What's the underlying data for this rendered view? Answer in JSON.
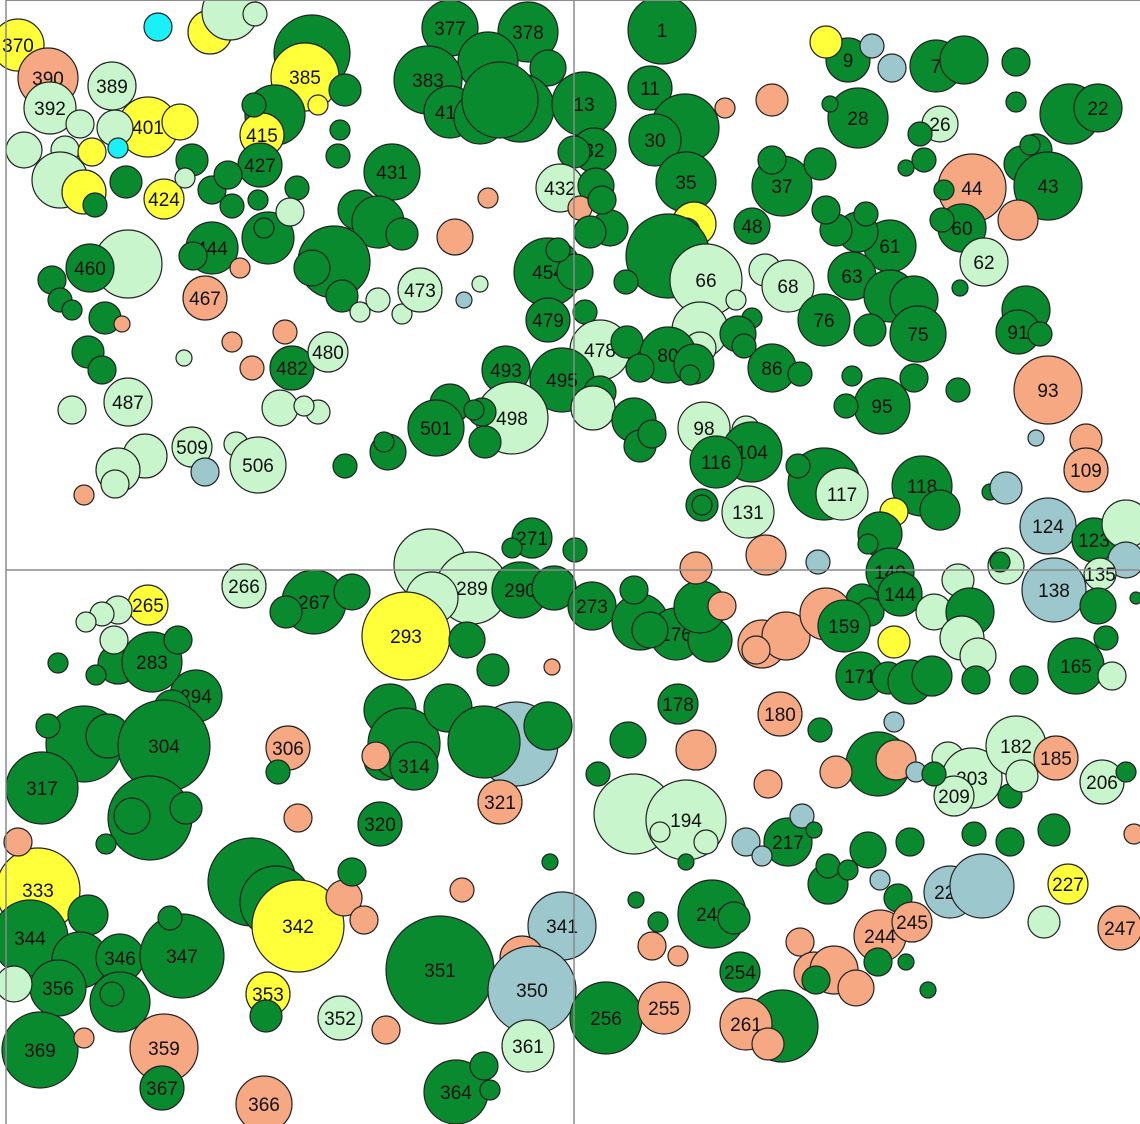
{
  "map": {
    "colors": {
      "green": "#0a8a2e",
      "light_green": "#c8f5cc",
      "orange": "#f5a882",
      "yellow": "#ffff3a",
      "blue_gray": "#9cc7cc",
      "cyan": "#19f0f8",
      "divider": "#8a8a8a",
      "background": "#ffffff"
    },
    "labels": {
      "p1": "1",
      "p7": "7",
      "p9": "9",
      "p11": "11",
      "p13": "13",
      "p22": "22",
      "p26": "26",
      "p28": "28",
      "p30": "30",
      "p32": "32",
      "p35": "35",
      "p37": "37",
      "p43": "43",
      "p44": "44",
      "p48": "48",
      "p60": "60",
      "p61": "61",
      "p62": "62",
      "p63": "63",
      "p66": "66",
      "p68": "68",
      "p75": "75",
      "p76": "76",
      "p80": "80",
      "p86": "86",
      "p91": "91",
      "p93": "93",
      "p95": "95",
      "p98": "98",
      "p104": "104",
      "p109": "109",
      "p116": "116",
      "p117": "117",
      "p118": "118",
      "p123": "123",
      "p124": "124",
      "p131": "131",
      "p135": "135",
      "p138": "138",
      "p140": "140",
      "p144": "144",
      "p159": "159",
      "p165": "165",
      "p171": "171",
      "p176": "176",
      "p178": "178",
      "p180": "180",
      "p182": "182",
      "p185": "185",
      "p194": "194",
      "p203": "203",
      "p206": "206",
      "p209": "209",
      "p217": "217",
      "p227": "227",
      "p229": "229",
      "p240": "240",
      "p244": "244",
      "p245": "245",
      "p247": "247",
      "p254": "254",
      "p255": "255",
      "p256": "256",
      "p261": "261",
      "p265": "265",
      "p266": "266",
      "p267": "267",
      "p271": "271",
      "p273": "273",
      "p283": "283",
      "p289": "289",
      "p290": "290",
      "p293": "293",
      "p294": "294",
      "p304": "304",
      "p306": "306",
      "p314": "314",
      "p317": "317",
      "p320": "320",
      "p321": "321",
      "p333": "333",
      "p341": "341",
      "p342": "342",
      "p344": "344",
      "p346": "346",
      "p347": "347",
      "p350": "350",
      "p351": "351",
      "p352": "352",
      "p353": "353",
      "p356": "356",
      "p359": "359",
      "p361": "361",
      "p364": "364",
      "p366": "366",
      "p367": "367",
      "p369": "369",
      "p370": "370",
      "p377": "377",
      "p378": "378",
      "p383": "383",
      "p385": "385",
      "p389": "389",
      "p390": "390",
      "p392": "392",
      "p401": "401",
      "p411": "411",
      "p415": "415",
      "p424": "424",
      "p427": "427",
      "p431": "431",
      "p432": "432",
      "p444": "444",
      "p454": "454",
      "p460": "460",
      "p467": "467",
      "p473": "473",
      "p478": "478",
      "p479": "479",
      "p480": "480",
      "p482": "482",
      "p487": "487",
      "p493": "493",
      "p495": "495",
      "p498": "498",
      "p501": "501",
      "p506": "506",
      "p509": "509"
    }
  }
}
